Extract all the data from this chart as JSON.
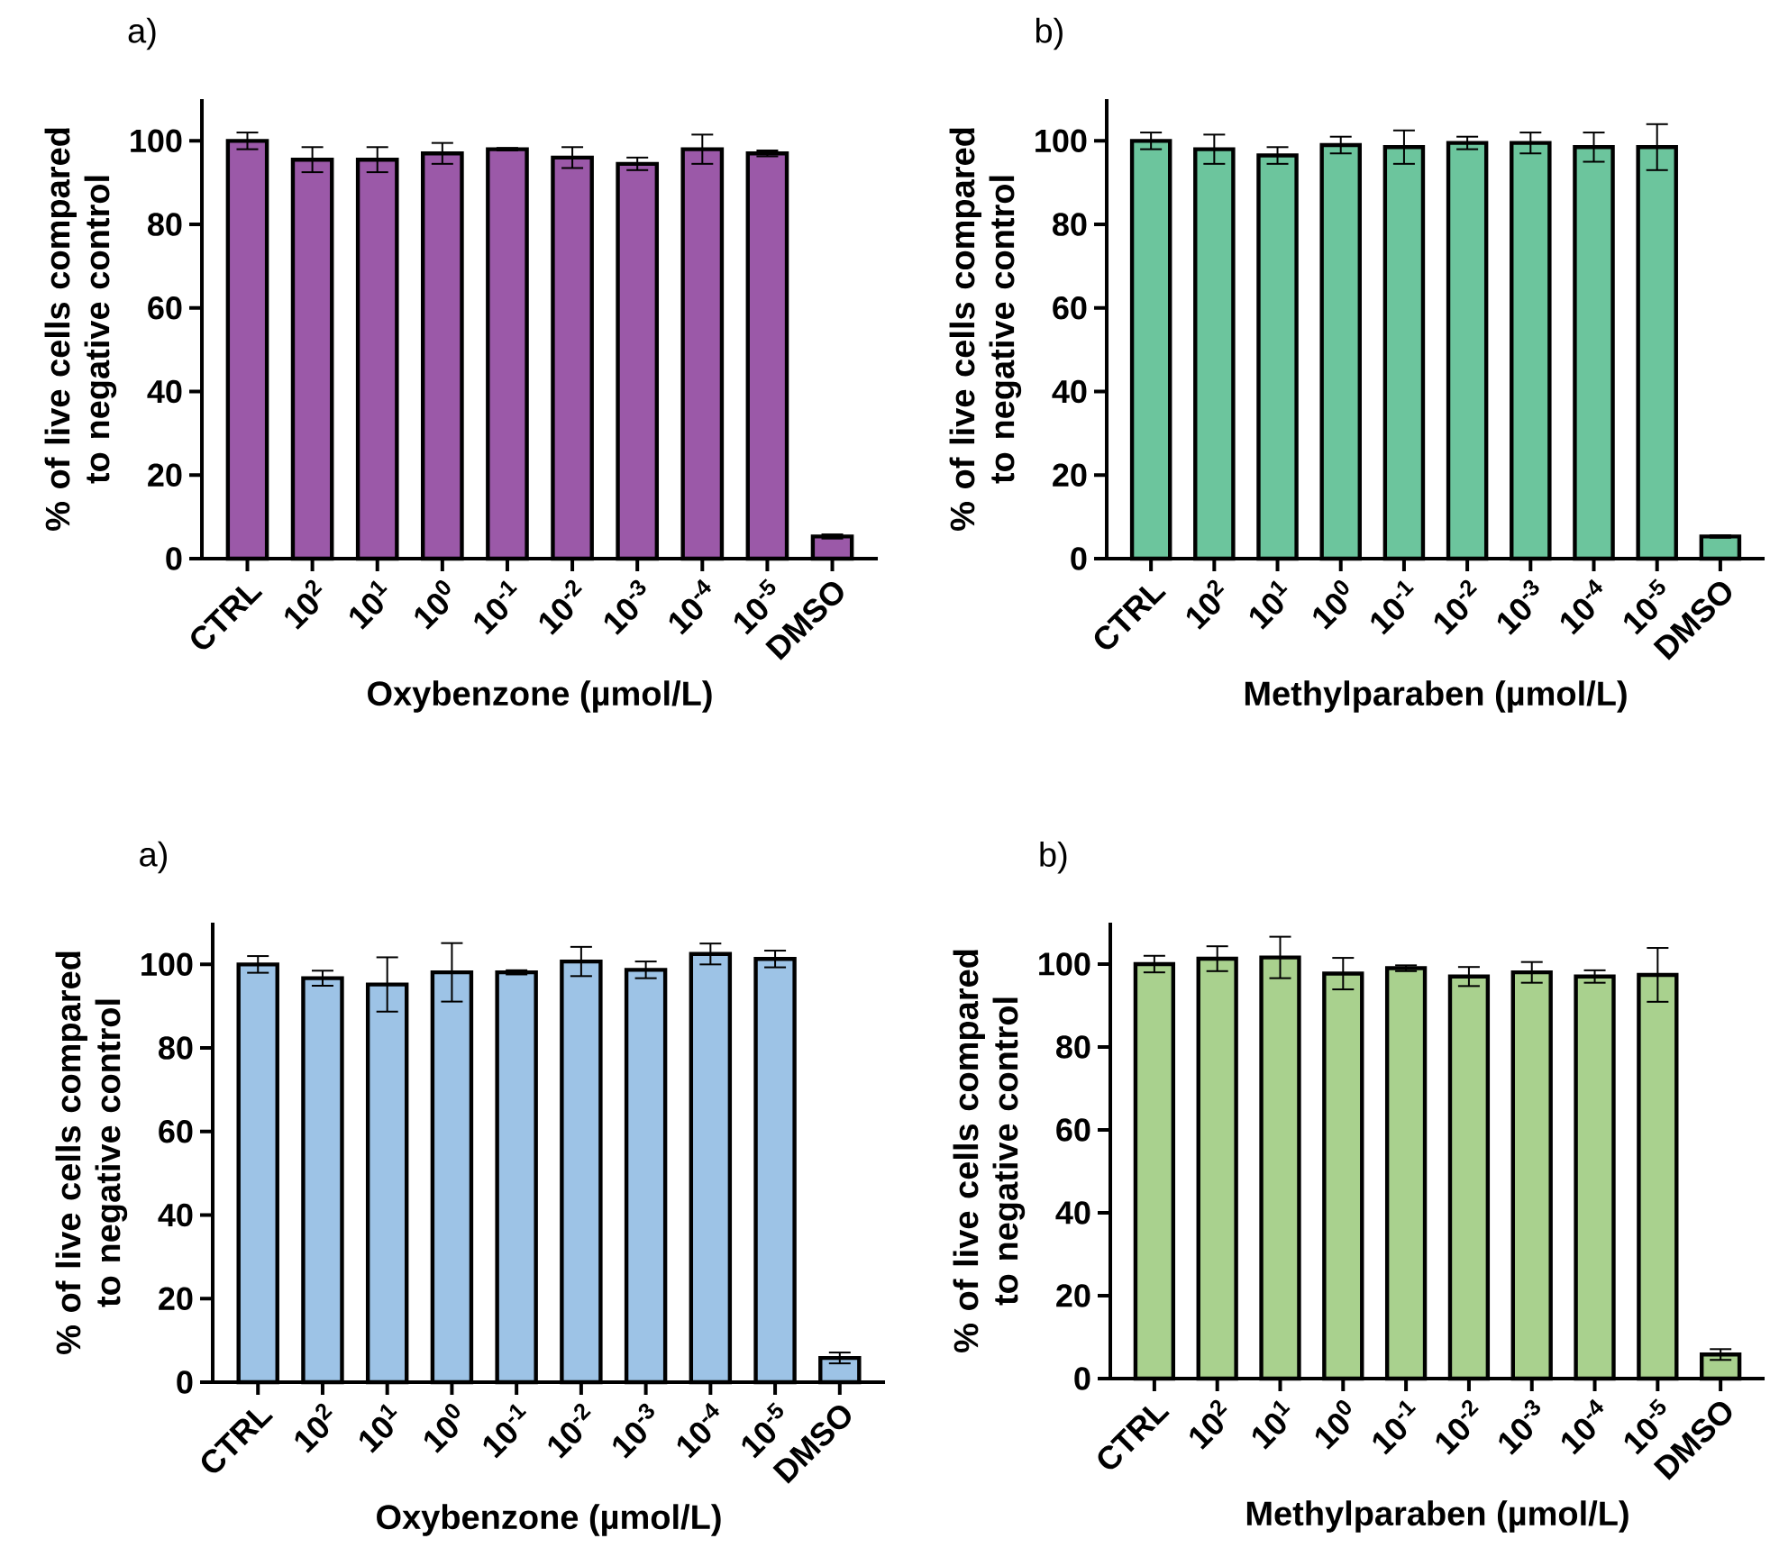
{
  "chart_data": [
    {
      "type": "bar",
      "title": "a)",
      "xlabel": "Oxybenzone (µmol/L)",
      "ylabel": "% of live cells compared to negative control",
      "categories": [
        "CTRL",
        "10$^{2}$",
        "10$^{1}$",
        "10$^{0}$",
        "10$^{-1}$",
        "10$^{-2}$",
        "10$^{-3}$",
        "10$^{-4}$",
        "10$^{-5}$",
        "DMSO"
      ],
      "color": "#9b59a8",
      "values": [
        100,
        95.5,
        95.5,
        97,
        98,
        96,
        94.5,
        98,
        97,
        5.3
      ],
      "errors": [
        2,
        3,
        3,
        2.5,
        0.3,
        2.5,
        1.5,
        3.5,
        0.7,
        0.5
      ],
      "ylim": [
        0,
        110
      ],
      "yticks": [
        0,
        20,
        40,
        60,
        80,
        100
      ]
    },
    {
      "type": "bar",
      "title": "b)",
      "xlabel": "Methylparaben (µmol/L)",
      "ylabel": "% of live cells compared to negative control",
      "categories": [
        "CTRL",
        "10$^{2}$",
        "10$^{1}$",
        "10$^{0}$",
        "10$^{-1}$",
        "10$^{-2}$",
        "10$^{-3}$",
        "10$^{-4}$",
        "10$^{-5}$",
        "DMSO"
      ],
      "color": "#6cc59d",
      "values": [
        100,
        98,
        96.5,
        99,
        98.5,
        99.5,
        99.5,
        98.5,
        98.5,
        5.3
      ],
      "errors": [
        2,
        3.5,
        2,
        2,
        4,
        1.5,
        2.5,
        3.5,
        5.5,
        0.3
      ],
      "ylim": [
        0,
        110
      ],
      "yticks": [
        0,
        20,
        40,
        60,
        80,
        100
      ]
    },
    {
      "type": "bar",
      "title": "a)",
      "xlabel": "Oxybenzone (µmol/L)",
      "ylabel": "% of live cells compared to negative control",
      "categories": [
        "CTRL",
        "10$^{2}$",
        "10$^{1}$",
        "10$^{0}$",
        "10$^{-1}$",
        "10$^{-2}$",
        "10$^{-3}$",
        "10$^{-4}$",
        "10$^{-5}$",
        "DMSO"
      ],
      "color": "#9dc3e6",
      "values": [
        100,
        96.7,
        95.2,
        98.1,
        98.1,
        100.7,
        98.7,
        102.5,
        101.3,
        5.8
      ],
      "errors": [
        2,
        1.8,
        6.5,
        7,
        0.5,
        3.5,
        2,
        2.5,
        2,
        1.3
      ],
      "ylim": [
        0,
        110
      ],
      "yticks": [
        0,
        20,
        40,
        60,
        80,
        100
      ]
    },
    {
      "type": "bar",
      "title": "b)",
      "xlabel": "Methylparaben (µmol/L)",
      "ylabel": "% of live cells compared to negative control",
      "categories": [
        "CTRL",
        "10$^{2}$",
        "10$^{1}$",
        "10$^{0}$",
        "10$^{-1}$",
        "10$^{-2}$",
        "10$^{-3}$",
        "10$^{-4}$",
        "10$^{-5}$",
        "DMSO"
      ],
      "color": "#a9d18e",
      "values": [
        100,
        101.3,
        101.6,
        97.7,
        99,
        97,
        98,
        97,
        97.4,
        5.8
      ],
      "errors": [
        2,
        3,
        5,
        3.8,
        0.7,
        2.3,
        2.5,
        1.5,
        6.5,
        1.3
      ],
      "ylim": [
        0,
        110
      ],
      "yticks": [
        0,
        20,
        40,
        60,
        80,
        100
      ]
    }
  ]
}
